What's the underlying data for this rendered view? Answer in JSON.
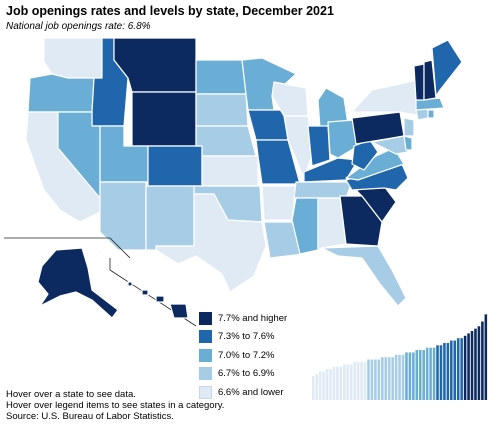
{
  "header": {
    "title": "Job openings rates and levels by state, December 2021",
    "subtitle": "National job openings rate: 6.8%"
  },
  "legend": [
    {
      "label": "7.7% and higher",
      "color": "#0c2a5f"
    },
    {
      "label": "7.3% to 7.6%",
      "color": "#2066ac"
    },
    {
      "label": "7.0% to 7.2%",
      "color": "#6aaed6"
    },
    {
      "label": "6.7% to 6.9%",
      "color": "#a6cde5"
    },
    {
      "label": "6.6% and lower",
      "color": "#dfeaf5"
    }
  ],
  "notes": [
    "Hover over a state to see data.",
    "Hover over legend items to see states in a category.",
    "Source: U.S. Bureau of Labor Statistics."
  ],
  "colors": {
    "c1": "#0c2a5f",
    "c2": "#2066ac",
    "c3": "#6aaed6",
    "c4": "#a6cde5",
    "c5": "#dfeaf5",
    "boundary": "#ffffff"
  },
  "chart_data": {
    "type": "bar",
    "categories_count": 51,
    "values": [
      6.0,
      6.1,
      6.2,
      6.2,
      6.3,
      6.3,
      6.4,
      6.4,
      6.4,
      6.5,
      6.5,
      6.5,
      6.6,
      6.6,
      6.6,
      6.6,
      6.7,
      6.7,
      6.7,
      6.7,
      6.8,
      6.8,
      6.8,
      6.8,
      6.9,
      6.9,
      6.9,
      7.0,
      7.0,
      7.0,
      7.1,
      7.1,
      7.1,
      7.2,
      7.2,
      7.2,
      7.3,
      7.3,
      7.4,
      7.4,
      7.5,
      7.5,
      7.6,
      7.6,
      7.7,
      7.8,
      7.9,
      8.0,
      8.1,
      8.3,
      8.6
    ]
  }
}
